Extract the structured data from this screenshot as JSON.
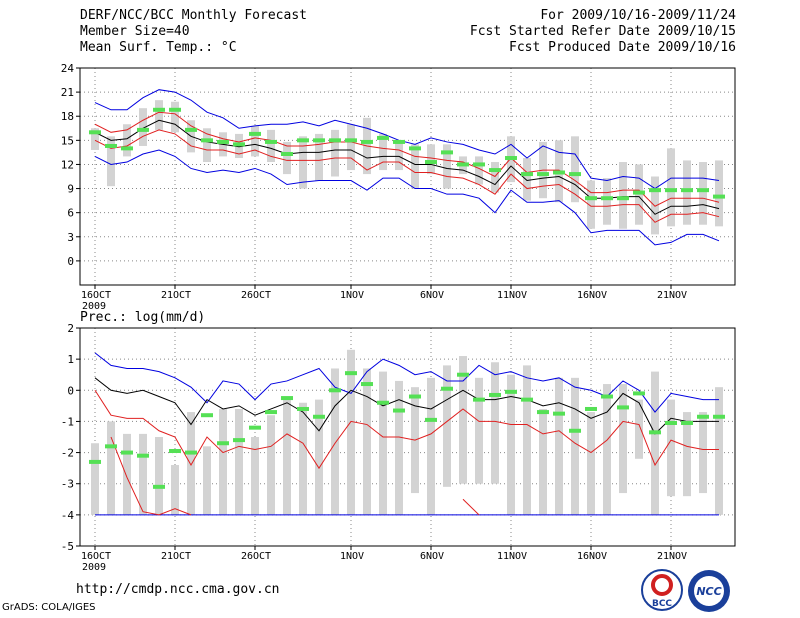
{
  "header": {
    "title": "DERF/NCC/BCC Monthly Forecast",
    "member_size": "Member Size=40",
    "variable": "Mean Surf. Temp.: °C",
    "period": "For 2009/10/16-2009/11/24",
    "started": "Fcst Started Refer Date 2009/10/15",
    "produced": "Fcst Produced Date 2009/10/16"
  },
  "footer": {
    "url": "http://cmdp.ncc.cma.gov.cn",
    "grads": "GrADS: COLA/IGES",
    "logo1_text": "BCC",
    "logo2_text": "NCC"
  },
  "colors": {
    "box": "#d3d3d3",
    "median": "#55e055",
    "ensemble_mean": "#000000",
    "inner_band": "#e02020",
    "outer_band": "#0000e0",
    "grid": "#888888"
  },
  "chart_data": [
    {
      "type": "line",
      "title": "Mean Surf. Temp.: °C",
      "x_start": "2009-10-16",
      "days": 40,
      "x_tick_labels": [
        "16OCT",
        "21OCT",
        "26OCT",
        "1NOV",
        "6NOV",
        "11NOV",
        "16NOV",
        "21NOV"
      ],
      "x_tick_days": [
        0,
        5,
        10,
        16,
        21,
        26,
        31,
        36
      ],
      "year_label": "2009",
      "ylim": [
        -3,
        24
      ],
      "y_ticks": [
        0,
        3,
        6,
        9,
        12,
        15,
        18,
        21,
        24
      ],
      "series": [
        {
          "name": "outer-upper",
          "color": "outer_band",
          "values": [
            19.7,
            18.8,
            18.8,
            20.3,
            21.3,
            21.0,
            20.0,
            18.5,
            17.8,
            16.5,
            16.8,
            17.0,
            17.0,
            17.3,
            16.8,
            17.5,
            17.0,
            16.5,
            15.8,
            15.0,
            14.5,
            15.3,
            14.8,
            14.5,
            13.8,
            13.3,
            14.5,
            12.8,
            14.3,
            13.5,
            13.3,
            10.3,
            10.0,
            10.5,
            10.3,
            9.0,
            10.3,
            10.3,
            10.3,
            10.0
          ]
        },
        {
          "name": "inner-upper",
          "color": "inner_band",
          "values": [
            17.0,
            16.0,
            16.3,
            17.5,
            18.5,
            18.3,
            16.8,
            15.8,
            15.2,
            14.8,
            15.3,
            15.0,
            14.3,
            14.3,
            14.5,
            14.8,
            14.8,
            14.3,
            14.0,
            13.8,
            13.0,
            12.8,
            12.5,
            12.3,
            11.5,
            10.5,
            12.8,
            11.0,
            11.3,
            11.3,
            10.0,
            8.5,
            8.5,
            8.8,
            8.8,
            6.8,
            7.8,
            7.8,
            7.8,
            7.3
          ]
        },
        {
          "name": "ensemble-mean",
          "color": "ensemble_mean",
          "values": [
            16.0,
            15.0,
            15.2,
            16.5,
            17.5,
            17.0,
            15.5,
            14.8,
            14.5,
            14.2,
            14.5,
            14.0,
            13.3,
            13.5,
            13.5,
            13.8,
            13.8,
            12.8,
            13.0,
            13.0,
            12.0,
            12.0,
            11.5,
            11.3,
            10.5,
            9.5,
            11.8,
            10.0,
            10.3,
            10.5,
            9.5,
            7.8,
            7.8,
            8.0,
            8.0,
            5.8,
            6.8,
            6.8,
            7.0,
            6.5
          ]
        },
        {
          "name": "inner-lower",
          "color": "inner_band",
          "values": [
            15.0,
            14.0,
            14.3,
            15.5,
            16.3,
            15.8,
            14.3,
            13.8,
            13.8,
            13.3,
            13.8,
            13.0,
            12.5,
            12.5,
            12.5,
            12.8,
            12.8,
            11.3,
            12.3,
            12.3,
            11.0,
            11.0,
            10.5,
            10.3,
            9.5,
            8.3,
            10.8,
            9.0,
            9.3,
            9.5,
            8.3,
            6.8,
            6.8,
            7.0,
            7.0,
            4.8,
            5.8,
            5.8,
            6.0,
            5.5
          ]
        },
        {
          "name": "outer-lower",
          "color": "outer_band",
          "values": [
            13.0,
            12.0,
            12.3,
            13.3,
            13.8,
            13.0,
            11.5,
            11.0,
            11.3,
            11.0,
            11.5,
            10.8,
            9.5,
            9.8,
            10.0,
            10.0,
            10.0,
            8.8,
            10.3,
            10.3,
            9.0,
            9.0,
            8.3,
            8.3,
            7.8,
            6.0,
            8.8,
            7.3,
            7.3,
            7.5,
            6.0,
            3.5,
            3.8,
            3.8,
            3.8,
            2.0,
            2.3,
            3.3,
            3.3,
            2.5
          ]
        }
      ],
      "boxes": {
        "low": [
          13.8,
          9.3,
          13.0,
          14.3,
          16.3,
          16.0,
          13.5,
          12.3,
          13.0,
          12.8,
          13.0,
          12.3,
          10.8,
          9.0,
          10.0,
          10.5,
          11.3,
          10.8,
          11.3,
          11.3,
          9.0,
          10.8,
          9.0,
          10.8,
          9.5,
          8.5,
          9.8,
          7.5,
          7.8,
          7.3,
          7.3,
          4.0,
          4.5,
          4.0,
          4.5,
          3.3,
          4.3,
          4.5,
          4.5,
          4.3
        ],
        "high": [
          16.5,
          15.5,
          17.0,
          19.0,
          20.0,
          19.8,
          17.5,
          16.5,
          16.0,
          15.8,
          16.8,
          16.3,
          14.8,
          15.5,
          15.8,
          16.3,
          17.0,
          17.8,
          15.8,
          15.0,
          14.5,
          14.5,
          14.5,
          13.0,
          13.0,
          12.3,
          15.5,
          12.8,
          14.8,
          15.0,
          15.5,
          10.0,
          10.3,
          12.3,
          12.0,
          10.5,
          14.0,
          12.5,
          12.3,
          12.5
        ],
        "median": [
          16.0,
          14.3,
          14.0,
          16.3,
          18.8,
          18.8,
          16.3,
          15.0,
          14.8,
          14.5,
          15.8,
          14.8,
          13.3,
          15.0,
          15.0,
          15.0,
          15.0,
          14.8,
          15.3,
          14.8,
          14.0,
          12.3,
          13.5,
          12.0,
          12.0,
          11.3,
          12.8,
          10.8,
          10.8,
          11.0,
          10.8,
          7.8,
          7.8,
          7.8,
          8.5,
          8.8,
          8.8,
          8.8,
          8.8,
          8.0
        ]
      },
      "grid": true
    },
    {
      "type": "line",
      "title": "Prec.: log(mm/d)",
      "x_start": "2009-10-16",
      "days": 40,
      "x_tick_labels": [
        "16OCT",
        "21OCT",
        "26OCT",
        "1NOV",
        "6NOV",
        "11NOV",
        "16NOV",
        "21NOV"
      ],
      "x_tick_days": [
        0,
        5,
        10,
        16,
        21,
        26,
        31,
        36
      ],
      "year_label": "2009",
      "ylim": [
        -5,
        2
      ],
      "y_ticks": [
        -5,
        -4,
        -3,
        -2,
        -1,
        0,
        1,
        2
      ],
      "series": [
        {
          "name": "outer-upper",
          "color": "outer_band",
          "values": [
            1.2,
            0.8,
            0.7,
            0.7,
            0.6,
            0.4,
            0.1,
            -0.4,
            0.3,
            0.2,
            -0.3,
            0.2,
            0.3,
            0.5,
            0.7,
            0.1,
            -0.1,
            0.6,
            1.0,
            0.8,
            0.5,
            0.6,
            0.3,
            0.3,
            0.8,
            0.5,
            0.6,
            0.4,
            0.3,
            0.4,
            0.1,
            0.0,
            -0.2,
            0.3,
            0.0,
            -0.7,
            -0.1,
            -0.2,
            -0.3,
            -0.3
          ]
        },
        {
          "name": "ensemble-mean",
          "color": "ensemble_mean",
          "values": [
            0.4,
            0.0,
            -0.1,
            0.0,
            -0.2,
            -0.4,
            -1.1,
            -0.3,
            -0.6,
            -0.5,
            -0.8,
            -0.6,
            -0.4,
            -0.7,
            -1.3,
            -0.5,
            0.0,
            -0.2,
            -0.5,
            -0.3,
            -0.5,
            -0.6,
            -0.3,
            0.0,
            -0.3,
            -0.3,
            -0.2,
            -0.3,
            -0.5,
            -0.4,
            -0.6,
            -0.9,
            -0.7,
            -0.1,
            -0.4,
            -1.4,
            -0.9,
            -1.0,
            -1.0,
            -1.0
          ]
        },
        {
          "name": "inner-lower",
          "color": "inner_band",
          "values": [
            0.0,
            -0.8,
            -0.9,
            -0.9,
            -1.3,
            -1.5,
            -2.4,
            -1.5,
            -2.0,
            -1.8,
            -1.9,
            -1.8,
            -1.4,
            -1.7,
            -2.5,
            -1.7,
            -1.0,
            -1.1,
            -1.5,
            -1.5,
            -1.6,
            -1.4,
            -1.0,
            -0.6,
            -1.0,
            -1.0,
            -1.1,
            -1.1,
            -1.4,
            -1.3,
            -1.7,
            -2.0,
            -1.6,
            -1.0,
            -1.1,
            -2.4,
            -1.6,
            -1.8,
            -1.9,
            -1.9
          ]
        },
        {
          "name": "outer-lower",
          "color": "outer_band",
          "values": [
            -4.0,
            -4.0,
            -4.0,
            -4.0,
            -4.0,
            -4.0,
            -4.0,
            -4.0,
            -4.0,
            -4.0,
            -4.0,
            -4.0,
            -4.0,
            -4.0,
            -4.0,
            -4.0,
            -4.0,
            -4.0,
            -4.0,
            -4.0,
            -4.0,
            -4.0,
            -4.0,
            -4.0,
            -4.0,
            -4.0,
            -4.0,
            -4.0,
            -4.0,
            -4.0,
            -4.0,
            -4.0,
            -4.0,
            -4.0,
            -4.0,
            -4.0,
            -4.0,
            -4.0,
            -4.0,
            -4.0
          ]
        }
      ],
      "low_red_line": [
        null,
        -1.5,
        -2.8,
        -3.9,
        -4.0,
        -3.8,
        -4.0,
        null,
        null,
        null,
        null,
        null,
        null,
        null,
        null,
        null,
        null,
        null,
        null,
        null,
        null,
        null,
        null,
        -3.5,
        -4.0,
        null,
        null,
        null,
        null,
        null,
        null,
        null,
        null,
        null,
        null,
        null,
        null,
        null,
        null,
        null
      ],
      "boxes": {
        "low": [
          -4.0,
          -4.0,
          -4.0,
          -4.0,
          -4.0,
          -4.0,
          -4.0,
          -4.0,
          -4.0,
          -4.0,
          -4.0,
          -4.0,
          -4.0,
          -4.0,
          -4.0,
          -4.0,
          -4.0,
          -4.0,
          -4.0,
          -4.0,
          -3.3,
          -4.0,
          -3.1,
          -3.0,
          -3.0,
          -3.0,
          -4.0,
          -4.0,
          -4.0,
          -4.0,
          -4.0,
          -4.0,
          -4.0,
          -3.3,
          -2.2,
          -4.0,
          -3.4,
          -3.4,
          -3.3,
          -4.0
        ],
        "high": [
          -1.7,
          -1.0,
          -1.4,
          -1.4,
          -1.5,
          -2.4,
          -0.7,
          -1.8,
          -0.6,
          -0.6,
          -1.5,
          -0.8,
          -0.2,
          -0.4,
          -0.3,
          0.7,
          1.3,
          0.7,
          0.6,
          0.3,
          0.1,
          0.4,
          0.8,
          1.1,
          0.4,
          0.9,
          0.5,
          0.8,
          -0.6,
          0.4,
          0.4,
          -0.7,
          0.2,
          0.2,
          -0.3,
          0.6,
          -0.3,
          -0.7,
          -0.7,
          0.1
        ],
        "median": [
          -2.3,
          -1.8,
          -2.0,
          -2.1,
          -3.1,
          -1.95,
          -2.0,
          -0.8,
          -1.7,
          -1.6,
          -1.2,
          -0.7,
          -0.25,
          -0.6,
          -0.85,
          0.0,
          0.55,
          0.2,
          -0.4,
          -0.65,
          -0.2,
          -0.95,
          0.05,
          0.5,
          -0.3,
          -0.15,
          -0.05,
          -0.3,
          -0.7,
          -0.75,
          -1.3,
          -0.6,
          -0.2,
          -0.55,
          -0.1,
          -1.35,
          -1.05,
          -1.05,
          -0.85,
          -0.85
        ]
      },
      "grid": true
    }
  ]
}
